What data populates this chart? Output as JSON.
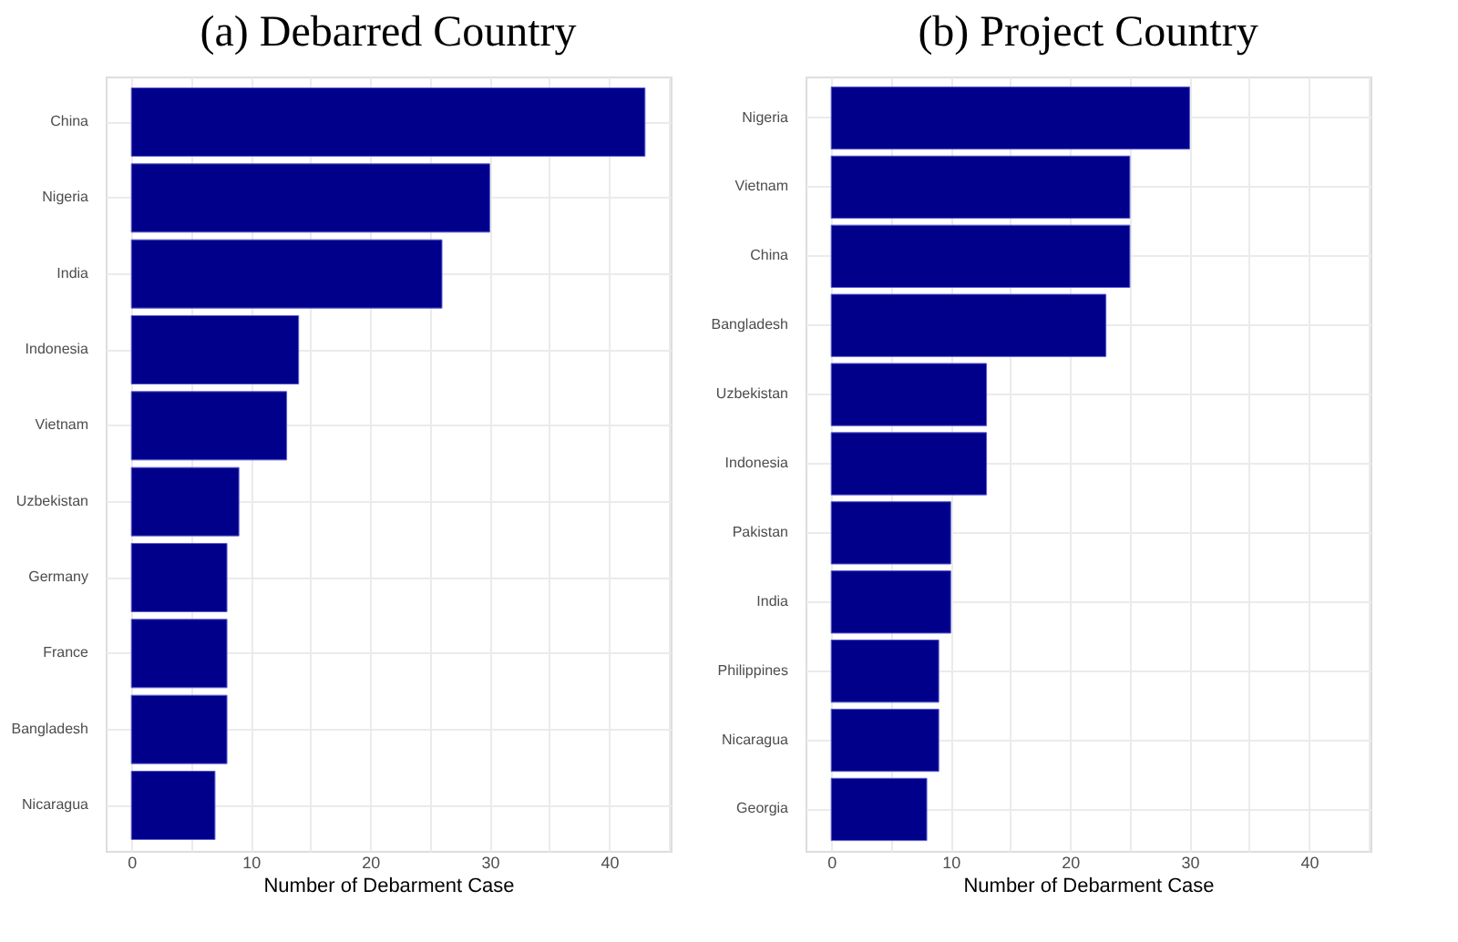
{
  "chart_data": [
    {
      "type": "bar",
      "orientation": "horizontal",
      "title": "(a) Debarred Country",
      "xlabel": "Number of Debarment Case",
      "categories": [
        "China",
        "Nigeria",
        "India",
        "Indonesia",
        "Vietnam",
        "Uzbekistan",
        "Germany",
        "France",
        "Bangladesh",
        "Nicaragua"
      ],
      "values": [
        43,
        30,
        26,
        14,
        13,
        9,
        8,
        8,
        8,
        7
      ],
      "color": "#00008b",
      "xlim": [
        -2.15,
        45.15
      ],
      "xticks": [
        0,
        {
          "value": 5,
          "label": null
        },
        10,
        {
          "value": 15,
          "label": null
        },
        20,
        {
          "value": 25,
          "label": null
        },
        30,
        {
          "value": 35,
          "label": null
        },
        40,
        {
          "value": 45,
          "label": null
        }
      ],
      "grid": true
    },
    {
      "type": "bar",
      "orientation": "horizontal",
      "title": "(b) Project Country",
      "xlabel": "Number of Debarment Case",
      "categories": [
        "Nigeria",
        "Vietnam",
        "China",
        "Bangladesh",
        "Uzbekistan",
        "Indonesia",
        "Pakistan",
        "India",
        "Philippines",
        "Nicaragua",
        "Georgia"
      ],
      "values": [
        30,
        25,
        25,
        23,
        13,
        13,
        10,
        10,
        9,
        9,
        8
      ],
      "color": "#00008b",
      "xlim": [
        -2.15,
        45.15
      ],
      "xticks": [
        0,
        {
          "value": 5,
          "label": null
        },
        10,
        {
          "value": 15,
          "label": null
        },
        20,
        {
          "value": 25,
          "label": null
        },
        30,
        {
          "value": 35,
          "label": null
        },
        40,
        {
          "value": 45,
          "label": null
        }
      ],
      "grid": true
    }
  ]
}
